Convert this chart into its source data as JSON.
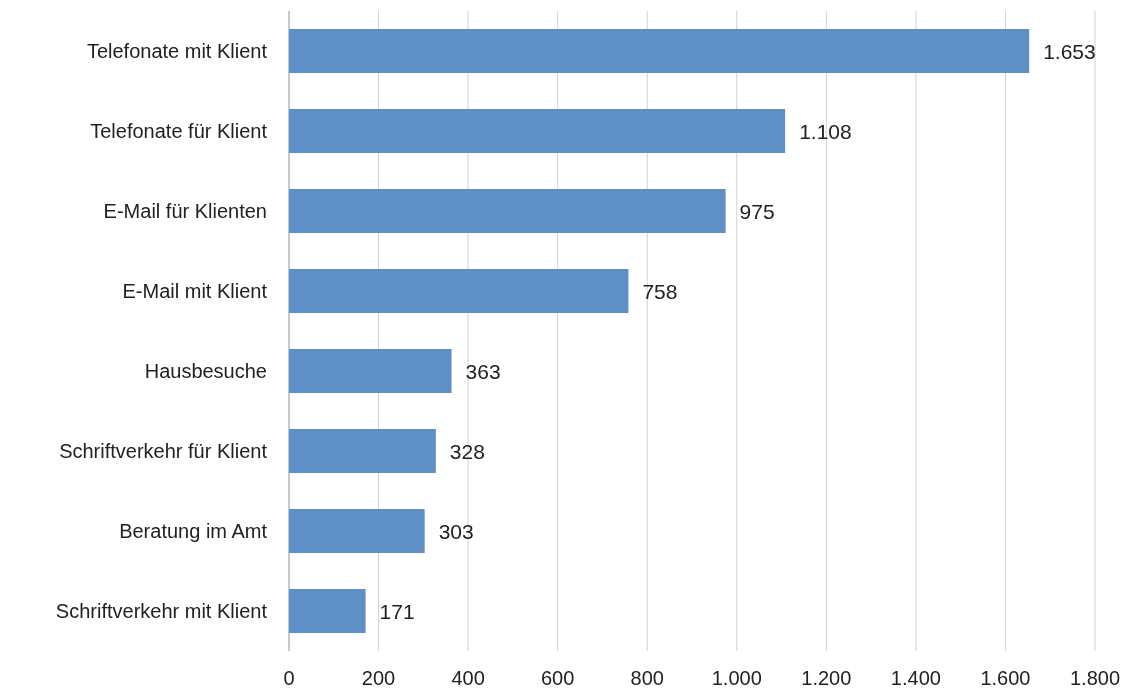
{
  "chart_data": {
    "type": "bar",
    "orientation": "horizontal",
    "categories": [
      "Telefonate mit Klient",
      "Telefonate für Klient",
      "E-Mail für Klienten",
      "E-Mail mit Klient",
      "Hausbesuche",
      "Schriftverkehr für Klient",
      "Beratung im Amt",
      "Schriftverkehr mit Klient"
    ],
    "values": [
      1653,
      1108,
      975,
      758,
      363,
      328,
      303,
      171
    ],
    "value_labels": [
      "1.653",
      "1.108",
      "975",
      "758",
      "363",
      "328",
      "303",
      "171"
    ],
    "color": "#5e8fc6",
    "xlim": [
      0,
      1800
    ],
    "xticks": [
      0,
      200,
      400,
      600,
      800,
      {
        "value": 1000,
        "label": "1.000"
      },
      {
        "value": 1200,
        "label": "1.200"
      },
      {
        "value": 1400,
        "label": "1.400"
      },
      {
        "value": 1600,
        "label": "1.600"
      },
      {
        "value": 1800,
        "label": "1.800"
      }
    ],
    "grid": "x"
  }
}
